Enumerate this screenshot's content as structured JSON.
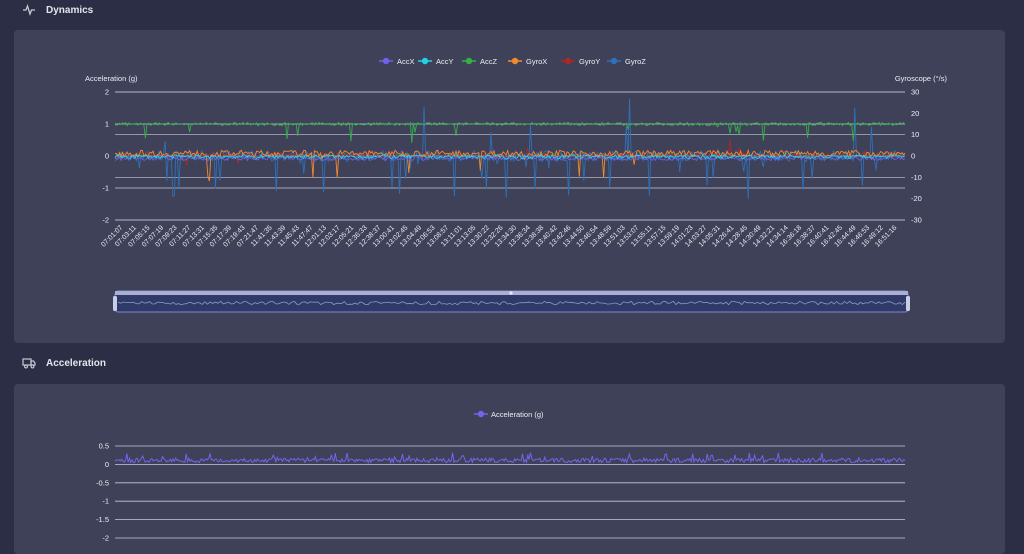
{
  "sections": {
    "dynamics": {
      "title": "Dynamics",
      "icon": "activity-icon"
    },
    "acceleration": {
      "title": "Acceleration",
      "icon": "truck-icon"
    }
  },
  "colors": {
    "accx": "#6c63e8",
    "accy": "#1fd3e6",
    "accz": "#34b04a",
    "gyrox": "#f08a30",
    "gyroy": "#b02626",
    "gyroz": "#2f70b8",
    "acceleration": "#7165ea"
  },
  "chart_data": [
    {
      "type": "line",
      "legend": [
        "AccX",
        "AccY",
        "AccZ",
        "GyroX",
        "GyroY",
        "GyroZ"
      ],
      "legend_position": "top-center",
      "ylabel_left": "Acceleration (g)",
      "ylabel_right": "Gyroscope (°/s)",
      "ylim_left": [
        -2,
        2
      ],
      "ylim_right": [
        -30,
        30
      ],
      "left_ticks": [
        "2",
        "1",
        "0",
        "-1",
        "-2"
      ],
      "right_ticks": [
        "30",
        "20",
        "10",
        "0",
        "-10",
        "-20",
        "-30"
      ],
      "grid": true,
      "x": [
        "07:01:07",
        "07:03:11",
        "07:05:15",
        "07:07:19",
        "07:09:23",
        "07:11:27",
        "07:13:31",
        "07:15:35",
        "07:17:39",
        "07:19:43",
        "07:21:47",
        "11:41:35",
        "11:43:39",
        "11:45:43",
        "11:47:47",
        "12:01:13",
        "12:03:17",
        "12:05:21",
        "12:36:33",
        "12:38:37",
        "13:00:41",
        "13:02:45",
        "13:04:49",
        "13:06:53",
        "13:08:57",
        "13:11:01",
        "13:13:05",
        "13:30:22",
        "13:32:26",
        "13:34:30",
        "13:36:34",
        "13:38:38",
        "13:40:42",
        "13:42:46",
        "13:44:50",
        "13:46:54",
        "13:48:59",
        "13:51:03",
        "13:53:07",
        "13:55:11",
        "13:57:15",
        "13:59:19",
        "14:01:23",
        "14:03:27",
        "14:05:31",
        "14:26:41",
        "14:28:45",
        "14:30:49",
        "14:32:21",
        "14:34:14",
        "16:36:18",
        "16:38:37",
        "16:40:41",
        "16:42:45",
        "16:44:49",
        "16:46:53",
        "16:49:12",
        "16:51:16"
      ],
      "series_summary": [
        {
          "name": "AccX",
          "values": [
            -0.1,
            -0.05,
            -0.1,
            0,
            -0.15,
            -0.1,
            -0.05,
            -0.1
          ]
        },
        {
          "name": "AccY",
          "values": [
            0,
            0.05,
            -0.05,
            0,
            0.05,
            -0.05,
            0,
            -0.1
          ]
        },
        {
          "name": "AccZ",
          "values": [
            1,
            1.05,
            0.95,
            1,
            1,
            1.05,
            0.95,
            1
          ]
        },
        {
          "name": "GyroX",
          "values": [
            0,
            1,
            -1,
            2,
            0,
            -1,
            1,
            0
          ]
        },
        {
          "name": "GyroY",
          "values": [
            0,
            -1,
            1,
            0,
            -2,
            1,
            0,
            0
          ]
        },
        {
          "name": "GyroZ",
          "values": [
            0,
            -5,
            3,
            -8,
            2,
            -6,
            4,
            -2
          ]
        }
      ]
    },
    {
      "type": "line",
      "legend": [
        "Acceleration (g)"
      ],
      "legend_position": "top-center",
      "ylim": [
        -2,
        0.5
      ],
      "y_ticks": [
        "0.5",
        "0",
        "-0.5",
        "-1",
        "-1.5",
        "-2"
      ],
      "grid": true,
      "series": [
        {
          "name": "Acceleration (g)",
          "values": [
            0.1,
            0.15,
            0.05,
            0.1,
            0.12,
            0.08,
            0.1
          ]
        }
      ]
    }
  ]
}
